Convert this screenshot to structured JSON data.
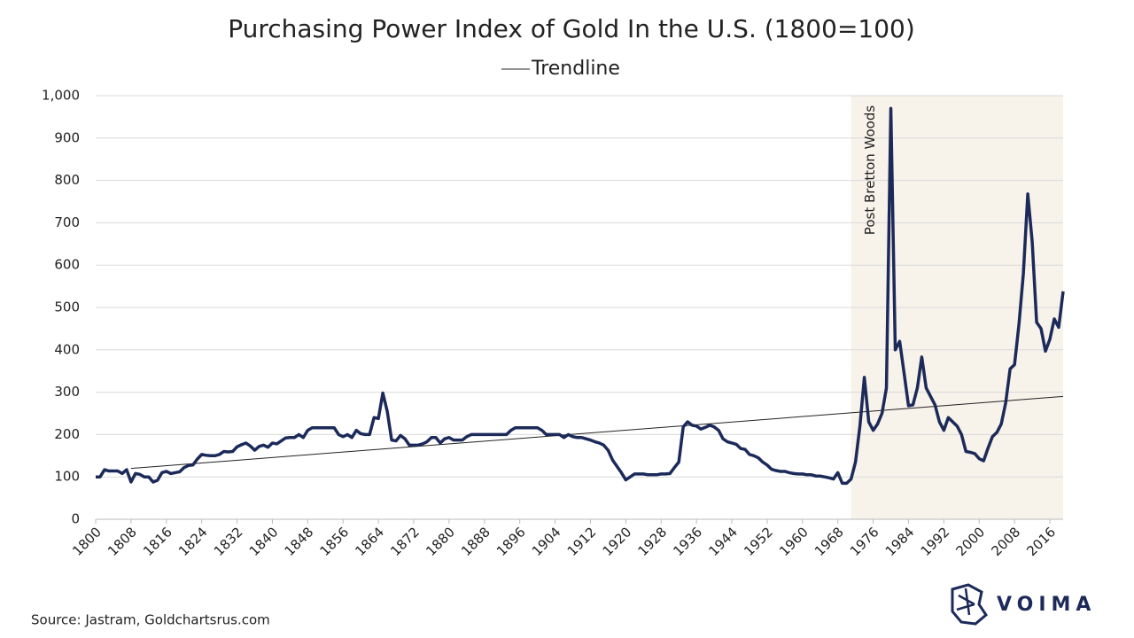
{
  "chart_data": {
    "type": "line",
    "title": "Purchasing Power Index of Gold In the U.S. (1800=100)",
    "source": "Source: Jastram, Goldchartsrus.com",
    "brand": "VOIMA",
    "x": [
      1800,
      1801,
      1802,
      1803,
      1804,
      1805,
      1806,
      1807,
      1808,
      1809,
      1810,
      1811,
      1812,
      1813,
      1814,
      1815,
      1816,
      1817,
      1818,
      1819,
      1820,
      1821,
      1822,
      1823,
      1824,
      1825,
      1826,
      1827,
      1828,
      1829,
      1830,
      1831,
      1832,
      1833,
      1834,
      1835,
      1836,
      1837,
      1838,
      1839,
      1840,
      1841,
      1842,
      1843,
      1844,
      1845,
      1846,
      1847,
      1848,
      1849,
      1850,
      1851,
      1852,
      1853,
      1854,
      1855,
      1856,
      1857,
      1858,
      1859,
      1860,
      1861,
      1862,
      1863,
      1864,
      1865,
      1866,
      1867,
      1868,
      1869,
      1870,
      1871,
      1872,
      1873,
      1874,
      1875,
      1876,
      1877,
      1878,
      1879,
      1880,
      1881,
      1882,
      1883,
      1884,
      1885,
      1886,
      1887,
      1888,
      1889,
      1890,
      1891,
      1892,
      1893,
      1894,
      1895,
      1896,
      1897,
      1898,
      1899,
      1900,
      1901,
      1902,
      1903,
      1904,
      1905,
      1906,
      1907,
      1908,
      1909,
      1910,
      1911,
      1912,
      1913,
      1914,
      1915,
      1916,
      1917,
      1918,
      1919,
      1920,
      1921,
      1922,
      1923,
      1924,
      1925,
      1926,
      1927,
      1928,
      1929,
      1930,
      1931,
      1932,
      1933,
      1934,
      1935,
      1936,
      1937,
      1938,
      1939,
      1940,
      1941,
      1942,
      1943,
      1944,
      1945,
      1946,
      1947,
      1948,
      1949,
      1950,
      1951,
      1952,
      1953,
      1954,
      1955,
      1956,
      1957,
      1958,
      1959,
      1960,
      1961,
      1962,
      1963,
      1964,
      1965,
      1966,
      1967,
      1968,
      1969,
      1970,
      1971,
      1972,
      1973,
      1974,
      1975,
      1976,
      1977,
      1978,
      1979,
      1980,
      1981,
      1982,
      1983,
      1984,
      1985,
      1986,
      1987,
      1988,
      1989,
      1990,
      1991,
      1992,
      1993,
      1994,
      1995,
      1996,
      1997,
      1998,
      1999,
      2000,
      2001,
      2002,
      2003,
      2004,
      2005,
      2006,
      2007,
      2008,
      2009,
      2010,
      2011,
      2012,
      2013,
      2014,
      2015,
      2016,
      2017,
      2018,
      2019
    ],
    "series": [
      {
        "color": "#1c2a5a",
        "values": [
          100,
          100,
          117,
          114,
          114,
          114,
          108,
          117,
          88,
          108,
          106,
          100,
          100,
          88,
          92,
          110,
          113,
          108,
          110,
          112,
          122,
          127,
          128,
          142,
          153,
          151,
          150,
          150,
          153,
          160,
          159,
          160,
          171,
          176,
          180,
          173,
          163,
          172,
          175,
          170,
          180,
          178,
          185,
          192,
          193,
          193,
          200,
          193,
          210,
          216,
          216,
          216,
          216,
          216,
          216,
          200,
          195,
          200,
          193,
          210,
          202,
          200,
          200,
          240,
          238,
          298,
          255,
          187,
          185,
          198,
          190,
          175,
          175,
          175,
          178,
          183,
          193,
          193,
          180,
          190,
          193,
          187,
          187,
          187,
          195,
          200,
          200,
          200,
          200,
          200,
          200,
          200,
          200,
          200,
          210,
          216,
          216,
          216,
          216,
          216,
          216,
          210,
          200,
          200,
          200,
          200,
          193,
          200,
          195,
          193,
          193,
          190,
          187,
          183,
          180,
          175,
          163,
          140,
          125,
          110,
          93,
          100,
          107,
          107,
          107,
          105,
          105,
          105,
          107,
          107,
          108,
          122,
          135,
          218,
          230,
          222,
          220,
          213,
          217,
          222,
          218,
          210,
          190,
          183,
          180,
          177,
          167,
          165,
          153,
          150,
          145,
          135,
          128,
          118,
          115,
          113,
          113,
          110,
          108,
          107,
          107,
          105,
          105,
          102,
          102,
          100,
          98,
          95,
          110,
          85,
          85,
          95,
          135,
          220,
          335,
          230,
          210,
          225,
          250,
          310,
          970,
          400,
          420,
          345,
          268,
          270,
          310,
          383,
          310,
          290,
          270,
          230,
          210,
          240,
          230,
          220,
          200,
          160,
          158,
          155,
          143,
          138,
          168,
          195,
          205,
          225,
          275,
          355,
          365,
          460,
          580,
          768,
          655,
          465,
          450,
          397,
          425,
          473,
          453,
          538
        ]
      }
    ],
    "trendline": {
      "name": "Trendline",
      "color": "#222222",
      "x": [
        1808,
        2019
      ],
      "values": [
        120,
        290
      ]
    },
    "shaded_region": {
      "x": [
        1971,
        2019
      ],
      "label": "Post Bretton Woods",
      "color": "#f7f2ea"
    },
    "xlim": [
      1800,
      2019
    ],
    "xticks": [
      1800,
      1808,
      1816,
      1824,
      1832,
      1840,
      1848,
      1856,
      1864,
      1872,
      1880,
      1888,
      1896,
      1904,
      1912,
      1920,
      1928,
      1936,
      1944,
      1952,
      1960,
      1968,
      1976,
      1984,
      1992,
      2000,
      2008,
      2016
    ],
    "ylim": [
      0,
      1000
    ],
    "yticks": [
      0,
      100,
      200,
      300,
      400,
      500,
      600,
      700,
      800,
      900,
      {
        "value": 1000,
        "label": "1,000"
      }
    ],
    "grid": true,
    "legend": "top"
  }
}
